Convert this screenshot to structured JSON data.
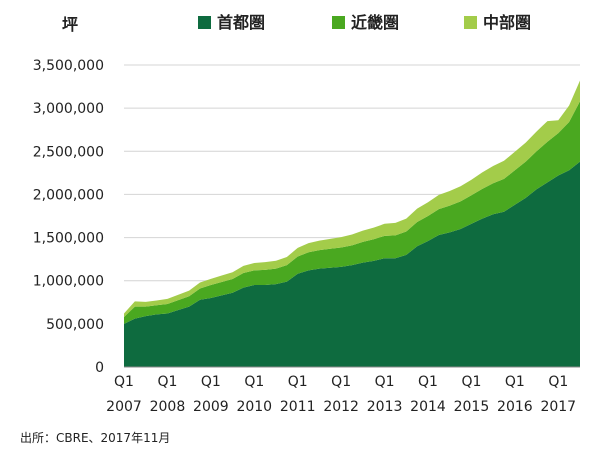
{
  "chart_data": {
    "type": "area",
    "stacked": true,
    "ylabel": "坪",
    "ylim": [
      0,
      3500000
    ],
    "yticks": [
      0,
      500000,
      1000000,
      1500000,
      2000000,
      2500000,
      3000000,
      3500000
    ],
    "ytick_labels": [
      "0",
      "500,000",
      "1,000,000",
      "1,500,000",
      "2,000,000",
      "2,500,000",
      "3,000,000",
      "3,500,000"
    ],
    "xticks": [
      {
        "q": "Q1",
        "year": "2007"
      },
      {
        "q": "Q1",
        "year": "2008"
      },
      {
        "q": "Q1",
        "year": "2009"
      },
      {
        "q": "Q1",
        "year": "2010"
      },
      {
        "q": "Q1",
        "year": "2011"
      },
      {
        "q": "Q1",
        "year": "2012"
      },
      {
        "q": "Q1",
        "year": "2013"
      },
      {
        "q": "Q1",
        "year": "2014"
      },
      {
        "q": "Q1",
        "year": "2015"
      },
      {
        "q": "Q1",
        "year": "2016"
      },
      {
        "q": "Q1",
        "year": "2017"
      }
    ],
    "grid": true,
    "legend_position": "top",
    "x": [
      "2007Q1",
      "2007Q2",
      "2007Q3",
      "2007Q4",
      "2008Q1",
      "2008Q2",
      "2008Q3",
      "2008Q4",
      "2009Q1",
      "2009Q2",
      "2009Q3",
      "2009Q4",
      "2010Q1",
      "2010Q2",
      "2010Q3",
      "2010Q4",
      "2011Q1",
      "2011Q2",
      "2011Q3",
      "2011Q4",
      "2012Q1",
      "2012Q2",
      "2012Q3",
      "2012Q4",
      "2013Q1",
      "2013Q2",
      "2013Q3",
      "2013Q4",
      "2014Q1",
      "2014Q2",
      "2014Q3",
      "2014Q4",
      "2015Q1",
      "2015Q2",
      "2015Q3",
      "2015Q4",
      "2016Q1",
      "2016Q2",
      "2016Q3",
      "2016Q4",
      "2017Q1",
      "2017Q2",
      "2017Q3"
    ],
    "series": [
      {
        "name": "首都圏",
        "color": "#0e6b3f",
        "values": [
          500000,
          560000,
          590000,
          610000,
          620000,
          660000,
          700000,
          780000,
          800000,
          830000,
          860000,
          920000,
          950000,
          950000,
          960000,
          990000,
          1080000,
          1120000,
          1140000,
          1150000,
          1160000,
          1180000,
          1210000,
          1230000,
          1260000,
          1260000,
          1300000,
          1400000,
          1460000,
          1530000,
          1560000,
          1600000,
          1660000,
          1720000,
          1770000,
          1800000,
          1880000,
          1960000,
          2060000,
          2140000,
          2220000,
          2280000,
          2380000
        ]
      },
      {
        "name": "近畿圏",
        "color": "#4aa820",
        "values": [
          80000,
          140000,
          110000,
          105000,
          110000,
          115000,
          120000,
          130000,
          150000,
          155000,
          160000,
          170000,
          170000,
          175000,
          180000,
          190000,
          200000,
          210000,
          215000,
          220000,
          225000,
          230000,
          240000,
          250000,
          260000,
          265000,
          270000,
          280000,
          290000,
          300000,
          310000,
          320000,
          330000,
          345000,
          360000,
          380000,
          400000,
          420000,
          440000,
          470000,
          490000,
          560000,
          700000
        ]
      },
      {
        "name": "中部圏",
        "color": "#a3cc4a",
        "values": [
          40000,
          60000,
          55000,
          55000,
          60000,
          62000,
          65000,
          70000,
          72000,
          75000,
          78000,
          82000,
          85000,
          90000,
          92000,
          95000,
          100000,
          105000,
          110000,
          115000,
          120000,
          125000,
          130000,
          135000,
          140000,
          145000,
          150000,
          155000,
          160000,
          165000,
          170000,
          175000,
          180000,
          190000,
          200000,
          210000,
          215000,
          220000,
          230000,
          240000,
          150000,
          190000,
          240000
        ]
      }
    ]
  },
  "source_note": "出所：CBRE、2017年11月"
}
